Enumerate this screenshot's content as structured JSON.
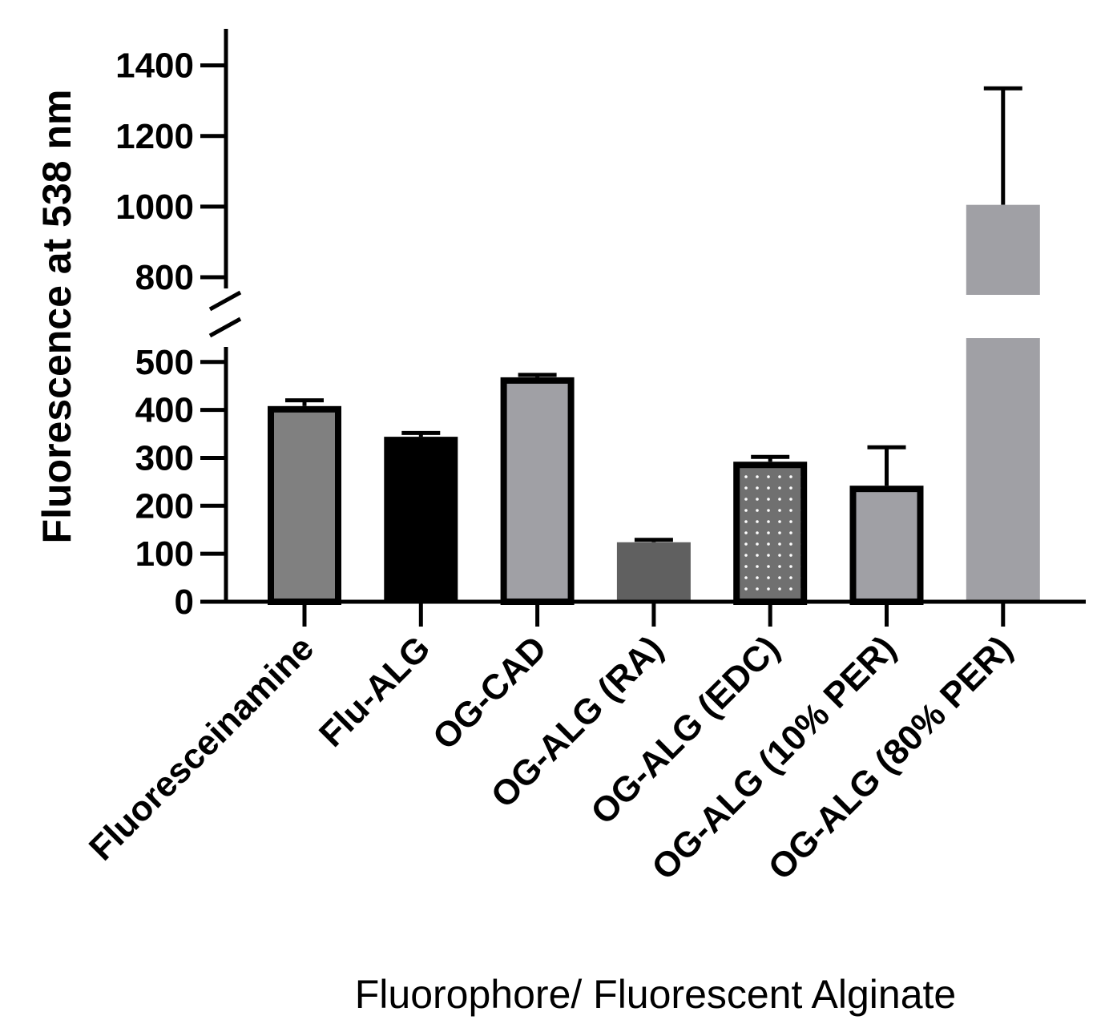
{
  "chart_data": {
    "type": "bar",
    "title": "",
    "xlabel": "Fluorophore/ Fluorescent Alginate",
    "ylabel": "Fluorescence at 538 nm",
    "y_axis_break": {
      "lower_range": [
        0,
        550
      ],
      "upper_range": [
        750,
        1500
      ]
    },
    "yticks_lower": [
      0,
      100,
      200,
      300,
      400,
      500
    ],
    "yticks_upper": [
      800,
      1000,
      1200,
      1400
    ],
    "categories": [
      "Fluoresceinamine",
      "Flu-ALG",
      "OG-CAD",
      "OG-ALG (RA)",
      "OG-ALG (EDC)",
      "OG-ALG (10% PER)",
      "OG-ALG (80% PER)"
    ],
    "values": [
      408,
      344,
      468,
      124,
      292,
      242,
      1005
    ],
    "error": [
      12,
      8,
      5,
      5,
      10,
      80,
      330
    ],
    "bar_fills": [
      "#808080",
      "#000000",
      "#a0a0a5",
      "#606060",
      "#808080",
      "#a0a0a5",
      "#a0a0a5"
    ],
    "bar_outlined": [
      true,
      false,
      true,
      false,
      true,
      true,
      false
    ],
    "bar_dotted": [
      false,
      false,
      false,
      false,
      true,
      false,
      false
    ],
    "grid": false
  }
}
